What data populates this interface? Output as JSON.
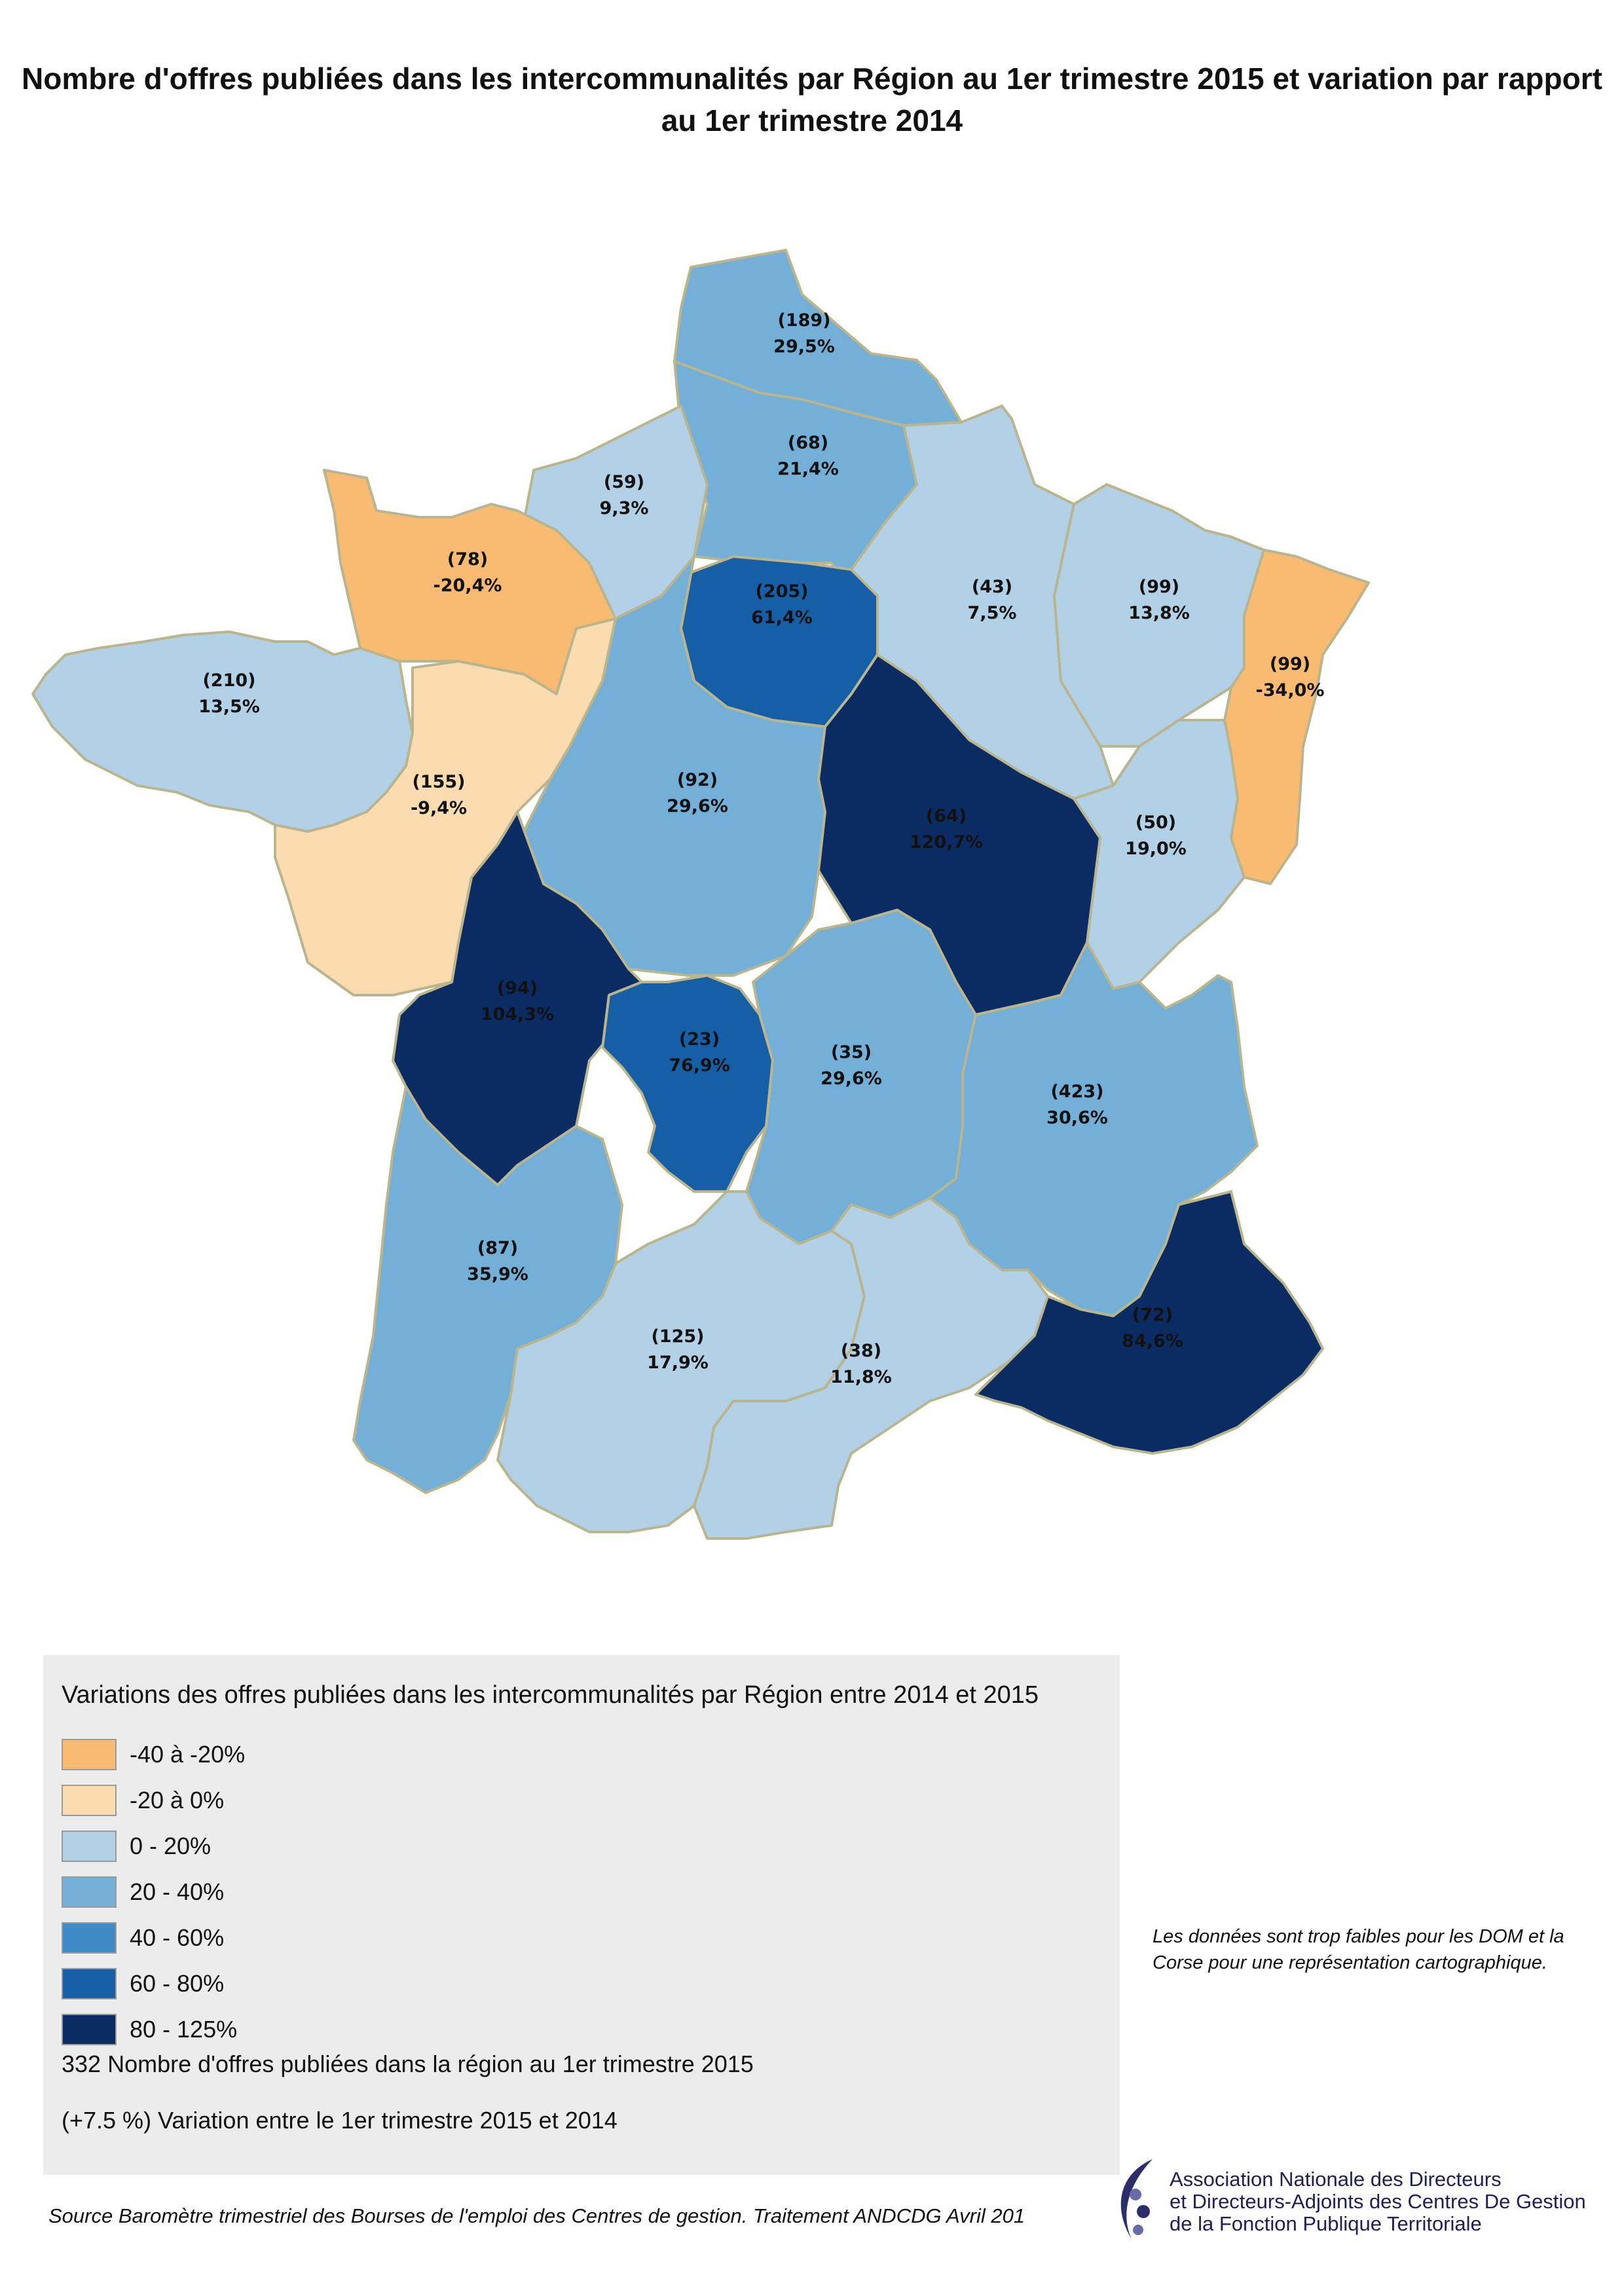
{
  "title": "Nombre d'offres publiées dans les intercommunalités  par Région au 1er trimestre 2015 et variation par rapport au 1er trimestre 2014",
  "colors": {
    "-40 à -20%": "#f9bb72",
    "-20 à 0%": "#fadcb0",
    "0 - 20%": "#b3d1e6",
    "20 - 40%": "#73afd6",
    "40 - 60%": "#3f8ac6",
    "60 - 80%": "#165ea6",
    "80 - 125%": "#0b2c63",
    "border": "#b9b58e"
  },
  "regions": [
    {
      "id": "nord-pas-de-calais",
      "count": "(189)",
      "variation": "29,5%",
      "class": "20 - 40%"
    },
    {
      "id": "picardie",
      "count": "(68)",
      "variation": "21,4%",
      "class": "20 - 40%"
    },
    {
      "id": "haute-normandie",
      "count": "(59)",
      "variation": "9,3%",
      "class": "0 - 20%"
    },
    {
      "id": "basse-normandie",
      "count": "(78)",
      "variation": "-20,4%",
      "class": "-40 à -20%"
    },
    {
      "id": "ile-de-france",
      "count": "(205)",
      "variation": "61,4%",
      "class": "60 - 80%"
    },
    {
      "id": "champagne-ardenne",
      "count": "(43)",
      "variation": "7,5%",
      "class": "0 - 20%"
    },
    {
      "id": "lorraine",
      "count": "(99)",
      "variation": "13,8%",
      "class": "0 - 20%"
    },
    {
      "id": "alsace",
      "count": "(99)",
      "variation": "-34,0%",
      "class": "-40 à -20%"
    },
    {
      "id": "bretagne",
      "count": "(210)",
      "variation": "13,5%",
      "class": "0 - 20%"
    },
    {
      "id": "pays-de-la-loire",
      "count": "(155)",
      "variation": "-9,4%",
      "class": "-20 à 0%"
    },
    {
      "id": "centre",
      "count": "(92)",
      "variation": "29,6%",
      "class": "20 - 40%"
    },
    {
      "id": "bourgogne",
      "count": "(64)",
      "variation": "120,7%",
      "class": "80 - 125%"
    },
    {
      "id": "franche-comte",
      "count": "(50)",
      "variation": "19,0%",
      "class": "0 - 20%"
    },
    {
      "id": "poitou-charentes",
      "count": "(94)",
      "variation": "104,3%",
      "class": "80 - 125%"
    },
    {
      "id": "limousin",
      "count": "(23)",
      "variation": "76,9%",
      "class": "60 - 80%"
    },
    {
      "id": "auvergne",
      "count": "(35)",
      "variation": "29,6%",
      "class": "20 - 40%"
    },
    {
      "id": "rhone-alpes",
      "count": "(423)",
      "variation": "30,6%",
      "class": "20 - 40%"
    },
    {
      "id": "aquitaine",
      "count": "(87)",
      "variation": "35,9%",
      "class": "20 - 40%"
    },
    {
      "id": "midi-pyrenees",
      "count": "(125)",
      "variation": "17,9%",
      "class": "0 - 20%"
    },
    {
      "id": "languedoc-roussillon",
      "count": "(38)",
      "variation": "11,8%",
      "class": "0 - 20%"
    },
    {
      "id": "paca",
      "count": "(72)",
      "variation": "84,6%",
      "class": "80 - 125%"
    }
  ],
  "legend": {
    "title": "Variations des offres publiées dans les intercommunalités par Région entre 2014 et 2015",
    "items": [
      {
        "label": "-40 à -20%",
        "color": "#f9bb72"
      },
      {
        "label": "-20 à 0%",
        "color": "#fadcb0"
      },
      {
        "label": "0 - 20%",
        "color": "#b3d1e6"
      },
      {
        "label": "20 - 40%",
        "color": "#73afd6"
      },
      {
        "label": "40 - 60%",
        "color": "#3f8ac6"
      },
      {
        "label": "60 - 80%",
        "color": "#165ea6"
      },
      {
        "label": "80 - 125%",
        "color": "#0b2c63"
      }
    ],
    "count_note": "332 Nombre d'offres publiées dans la région  au 1er trimestre 2015",
    "variation_note": "(+7.5 %) Variation entre le 1er trimestre 2015 et 2014"
  },
  "side_note": "Les données sont trop faibles pour les DOM et la Corse pour une représentation cartographique.",
  "source": "Source Baromètre trimestriel des Bourses de l'emploi des Centres de gestion. Traitement ANDCDG Avril 201",
  "organization": {
    "line1": "Association Nationale des Directeurs",
    "line2": "et Directeurs-Adjoints des Centres De Gestion",
    "line3": "de la Fonction Publique Territoriale",
    "logo_icon": "andcdg-logo-icon"
  }
}
